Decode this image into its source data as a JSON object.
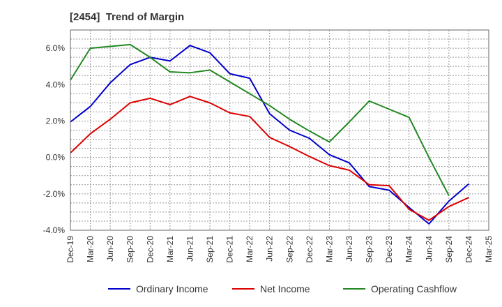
{
  "chart_data": {
    "type": "line",
    "title": "[2454]  Trend of Margin",
    "xlabel": "",
    "ylabel": "",
    "ylim": [
      -4.0,
      7.0
    ],
    "y_ticks": [
      "6.0%",
      "4.0%",
      "2.0%",
      "0.0%",
      "-2.0%",
      "-4.0%"
    ],
    "y_tick_values": [
      6,
      4,
      2,
      0,
      -2,
      -4
    ],
    "categories": [
      "Dec-19",
      "Mar-20",
      "Jun-20",
      "Sep-20",
      "Dec-20",
      "Mar-21",
      "Jun-21",
      "Sep-21",
      "Dec-21",
      "Mar-22",
      "Jun-22",
      "Sep-22",
      "Dec-22",
      "Mar-23",
      "Jun-23",
      "Sep-23",
      "Dec-23",
      "Mar-24",
      "Jun-24",
      "Sep-24",
      "Dec-24",
      "Mar-25"
    ],
    "grid": true,
    "legend_position": "bottom",
    "series": [
      {
        "name": "Ordinary Income",
        "color": "#0000cc",
        "values": [
          1.95,
          2.8,
          4.1,
          5.1,
          5.5,
          5.3,
          6.15,
          5.75,
          4.6,
          4.35,
          2.4,
          1.5,
          1.05,
          0.15,
          -0.3,
          -1.6,
          -1.8,
          -2.75,
          -3.65,
          -2.4,
          -1.45,
          null
        ]
      },
      {
        "name": "Net Income",
        "color": "#dd0000",
        "values": [
          0.25,
          1.3,
          2.1,
          3.0,
          3.25,
          2.9,
          3.35,
          3.0,
          2.45,
          2.25,
          1.1,
          0.6,
          0.05,
          -0.45,
          -0.7,
          -1.5,
          -1.55,
          -2.85,
          -3.45,
          -2.7,
          -2.2,
          null
        ]
      },
      {
        "name": "Operating Cashflow",
        "color": "#228822",
        "values": [
          4.25,
          6.0,
          6.1,
          6.2,
          5.5,
          4.7,
          4.65,
          4.8,
          4.15,
          3.5,
          2.85,
          2.1,
          1.45,
          0.85,
          1.95,
          3.1,
          2.65,
          2.2,
          0.0,
          -2.1,
          null,
          null
        ]
      }
    ]
  }
}
